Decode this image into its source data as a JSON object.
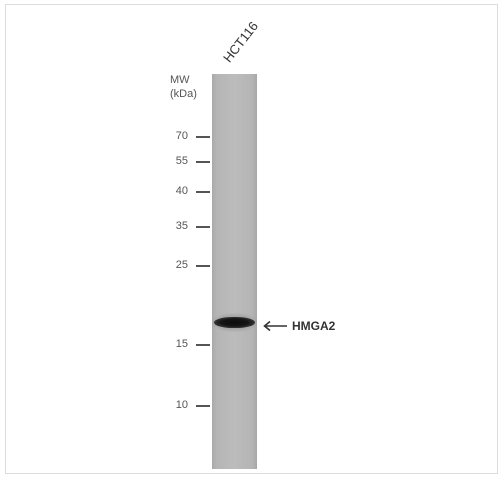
{
  "lane": {
    "sample": "HCT116"
  },
  "mw": {
    "title_line1": "MW",
    "title_line2": "(kDa)"
  },
  "markers": [
    {
      "label": "70"
    },
    {
      "label": "55"
    },
    {
      "label": "40"
    },
    {
      "label": "35"
    },
    {
      "label": "25"
    },
    {
      "label": "15"
    },
    {
      "label": "10"
    }
  ],
  "band": {
    "target": "HMGA2",
    "arrow_icon": "left-arrow-icon"
  }
}
